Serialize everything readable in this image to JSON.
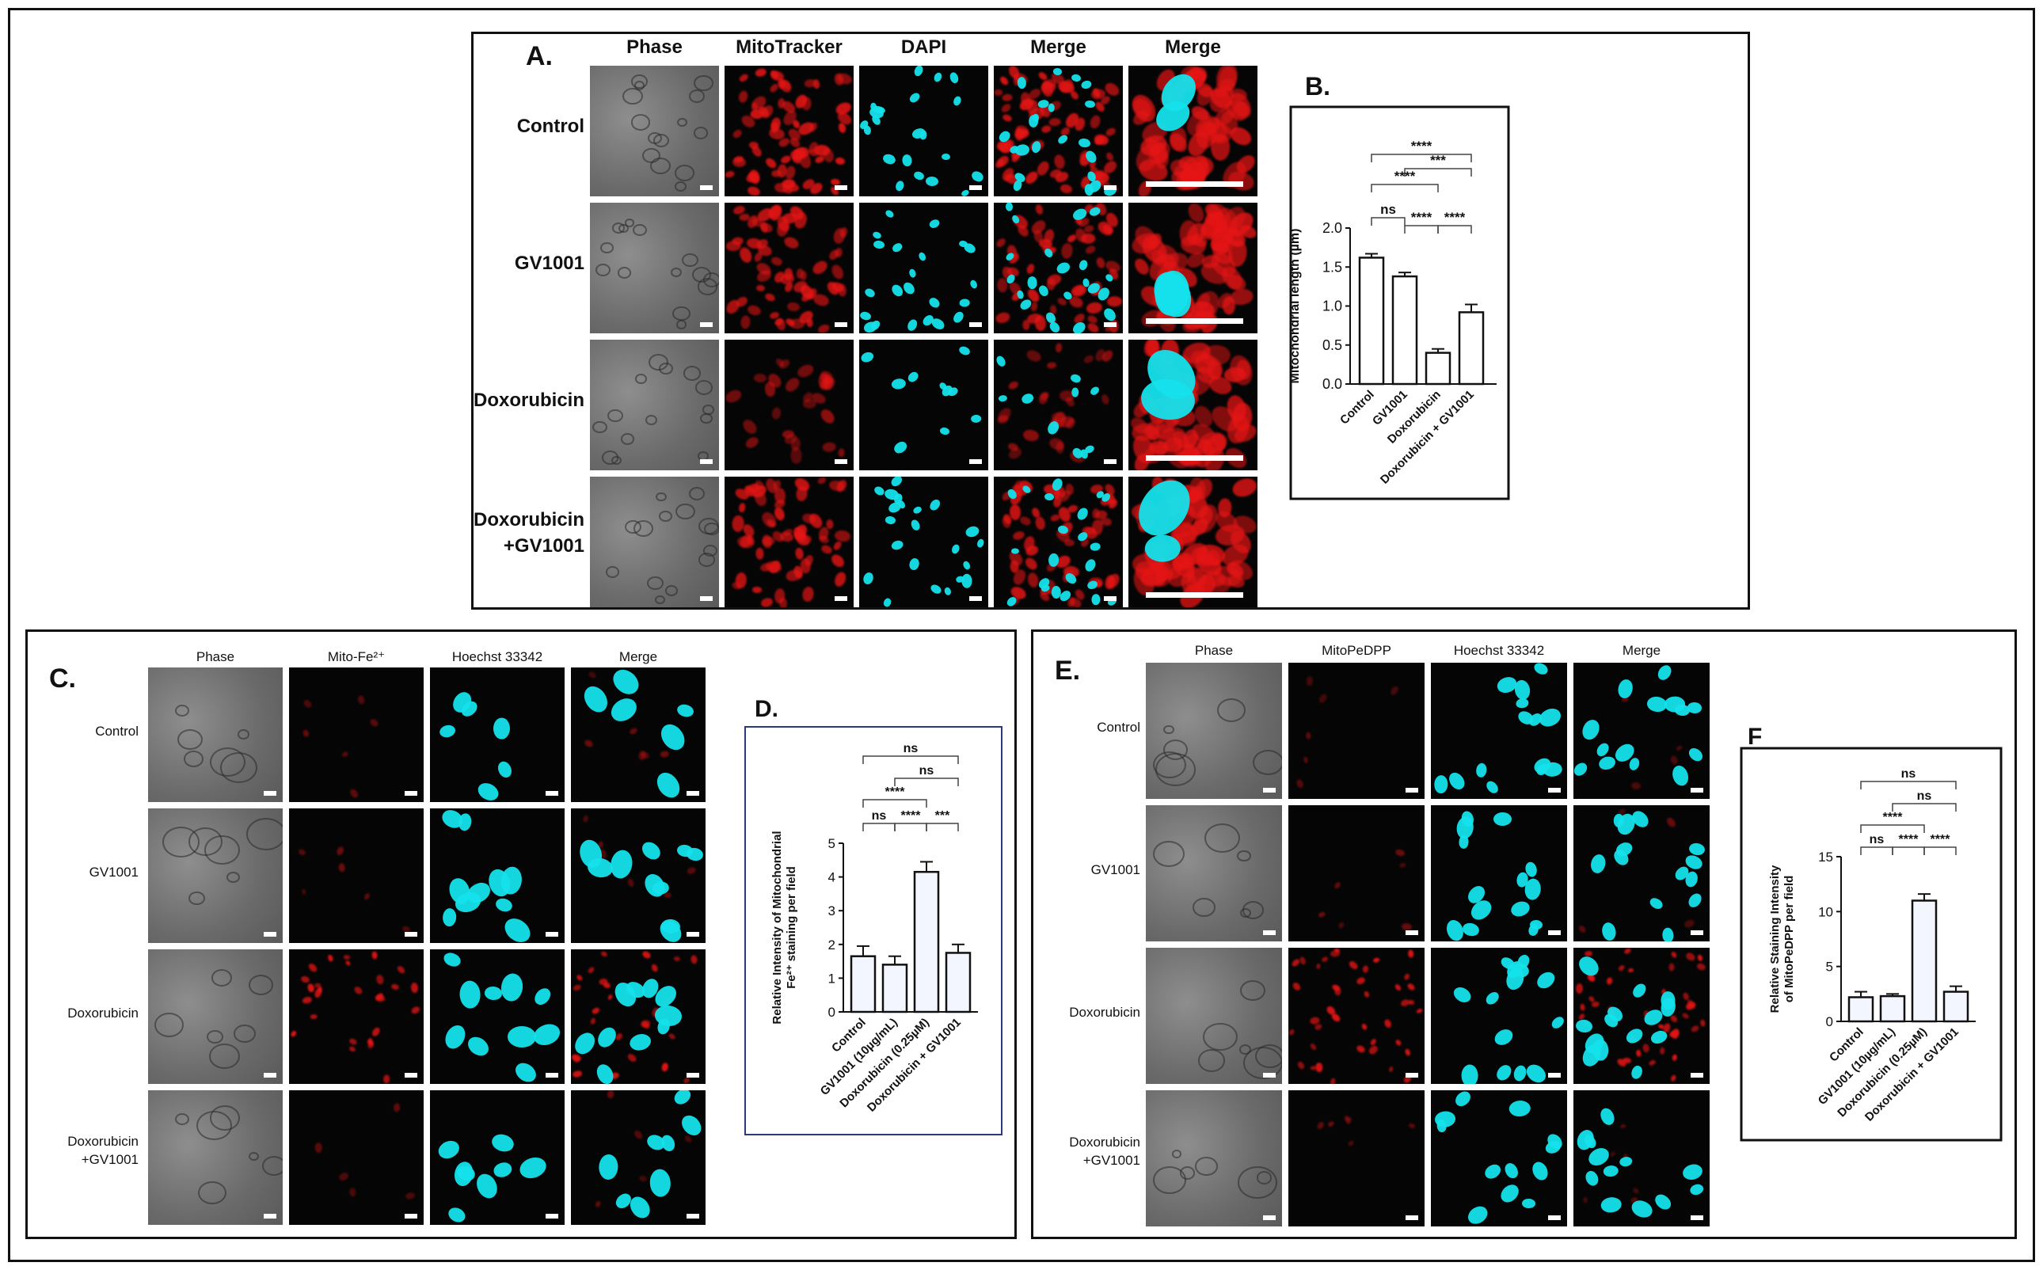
{
  "panelA": {
    "letter": "A.",
    "columns": [
      "Phase",
      "MitoTracker",
      "DAPI",
      "Merge",
      "Merge"
    ],
    "rows": [
      "Control",
      "GV1001",
      "Doxorubicin",
      "Doxorubicin\n+GV1001"
    ]
  },
  "panelC": {
    "letter": "C.",
    "columns": [
      "Phase",
      "Mito-Fe²⁺",
      "Hoechst 33342",
      "Merge"
    ],
    "rows": [
      "Control",
      "GV1001",
      "Doxorubicin",
      "Doxorubicin\n+GV1001"
    ]
  },
  "panelE": {
    "letter": "E.",
    "columns": [
      "Phase",
      "MitoPeDPP",
      "Hoechst 33342",
      "Merge"
    ],
    "rows": [
      "Control",
      "GV1001",
      "Doxorubicin",
      "Doxorubicin\n+GV1001"
    ]
  },
  "chart_data": [
    {
      "panel": "B.",
      "type": "bar",
      "categories": [
        "Control",
        "GV1001",
        "Doxorubicin",
        "Doxorubicin + GV1001"
      ],
      "values": [
        1.62,
        1.38,
        0.4,
        0.92
      ],
      "errors": [
        0.05,
        0.05,
        0.05,
        0.1
      ],
      "ylabel": "Mitochondrial length (µm)",
      "ylim": [
        0,
        2.0
      ],
      "yticks": [
        "0.0",
        "0.5",
        "1.0",
        "1.5",
        "2.0"
      ],
      "tick_values": [
        0,
        0.5,
        1.0,
        1.5,
        2.0
      ],
      "significance": [
        {
          "from": 0,
          "to": 3,
          "label": "****"
        },
        {
          "from": 1,
          "to": 3,
          "label": "***"
        },
        {
          "from": 0,
          "to": 2,
          "label": "****"
        },
        {
          "from": 0,
          "to": 1,
          "label": "ns"
        },
        {
          "from": 1,
          "to": 2,
          "label": "****"
        },
        {
          "from": 2,
          "to": 3,
          "label": "****"
        }
      ]
    },
    {
      "panel": "D.",
      "type": "bar",
      "categories": [
        "Control",
        "GV1001 (10µg/mL)",
        "Doxorubicin (0.25µM)",
        "Doxorubicin + GV1001"
      ],
      "values": [
        1.65,
        1.4,
        4.15,
        1.75
      ],
      "errors": [
        0.3,
        0.25,
        0.3,
        0.25
      ],
      "ylabel": "Relative Intensity of Mitochondrial\nFe²⁺ staining per field",
      "ylim": [
        0,
        5
      ],
      "yticks": [
        "0",
        "1",
        "2",
        "3",
        "4",
        "5"
      ],
      "tick_values": [
        0,
        1,
        2,
        3,
        4,
        5
      ],
      "significance": [
        {
          "from": 0,
          "to": 3,
          "label": "ns"
        },
        {
          "from": 1,
          "to": 3,
          "label": "ns"
        },
        {
          "from": 0,
          "to": 2,
          "label": "****"
        },
        {
          "from": 0,
          "to": 1,
          "label": "ns"
        },
        {
          "from": 1,
          "to": 2,
          "label": "****"
        },
        {
          "from": 2,
          "to": 3,
          "label": "***"
        }
      ]
    },
    {
      "panel": "F",
      "type": "bar",
      "categories": [
        "Control",
        "GV1001 (10µg/mL)",
        "Doxorubicin (0.25µM)",
        "Doxorubicin + GV1001"
      ],
      "values": [
        2.2,
        2.3,
        11.0,
        2.7
      ],
      "errors": [
        0.5,
        0.2,
        0.6,
        0.5
      ],
      "ylabel": "Relative Staining Intensity\nof MitoPeDPP per field",
      "ylim": [
        0,
        15
      ],
      "yticks": [
        "0",
        "5",
        "10",
        "15"
      ],
      "tick_values": [
        0,
        5,
        10,
        15
      ],
      "significance": [
        {
          "from": 0,
          "to": 3,
          "label": "ns"
        },
        {
          "from": 1,
          "to": 3,
          "label": "ns"
        },
        {
          "from": 0,
          "to": 2,
          "label": "****"
        },
        {
          "from": 0,
          "to": 1,
          "label": "ns"
        },
        {
          "from": 1,
          "to": 2,
          "label": "****"
        },
        {
          "from": 2,
          "to": 3,
          "label": "****"
        }
      ]
    }
  ]
}
